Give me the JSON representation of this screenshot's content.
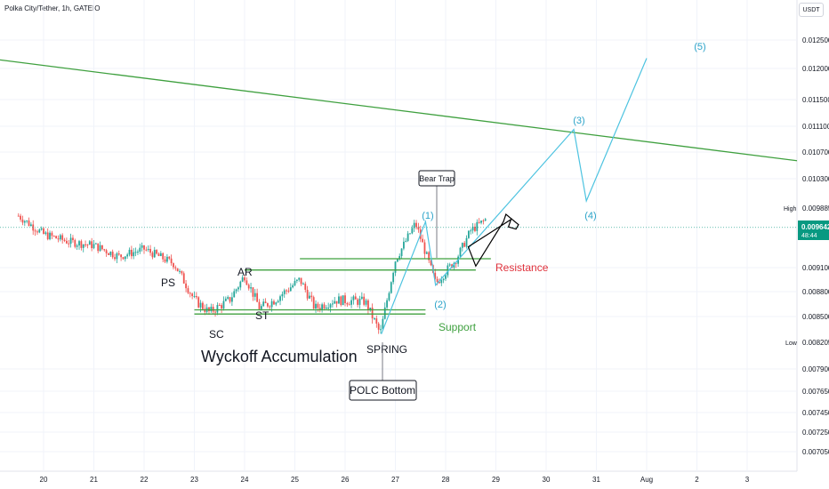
{
  "header": {
    "title": "Polka City/Tether, 1h, GATEIO",
    "currency": "USDT"
  },
  "colors": {
    "up": "#26a69a",
    "down": "#ef5350",
    "trendline": "#3fa03f",
    "wave": "#4dc3e0",
    "wave_label": "#2ba3c9",
    "resistance_label": "#e0323c",
    "support_label": "#3fa03f",
    "current_price_bg": "#089981",
    "annotation_text": "#131722"
  },
  "price_axis": {
    "ticks": [
      "0.012500",
      "0.012000",
      "0.011500",
      "0.011100",
      "0.010700",
      "0.010300",
      "0.009100",
      "0.008800",
      "0.008500",
      "0.007900",
      "0.007650",
      "0.007450",
      "0.007250",
      "0.007050"
    ],
    "high_label": "High",
    "high_value": "0.009885",
    "low_label": "Low",
    "low_value": "0.008205",
    "current_value": "0.009642",
    "countdown": "48:44"
  },
  "time_axis": {
    "ticks": [
      "20",
      "21",
      "22",
      "23",
      "24",
      "25",
      "26",
      "27",
      "28",
      "29",
      "30",
      "31",
      "Aug",
      "2",
      "3"
    ]
  },
  "annotations": {
    "ps": "PS",
    "sc": "SC",
    "ar": "AR",
    "st": "ST",
    "spring": "SPRING",
    "title": "Wyckoff Accumulation",
    "polc": "POLC Bottom",
    "bear_trap": "Bear Trap",
    "support": "Support",
    "resistance": "Resistance",
    "wave1": "(1)",
    "wave2": "(2)",
    "wave3": "(3)",
    "wave4": "(4)",
    "wave5": "(5)"
  },
  "chart_data": {
    "type": "candlestick",
    "symbol": "Polka City/Tether",
    "interval": "1h",
    "exchange": "GATEIO",
    "quote_currency": "USDT",
    "y_ticks": [
      0.0125,
      0.012,
      0.0115,
      0.0111,
      0.0107,
      0.0103,
      0.0091,
      0.0088,
      0.0085,
      0.0079,
      0.00765,
      0.00745,
      0.00725,
      0.00705
    ],
    "x_ticks": [
      "20",
      "21",
      "22",
      "23",
      "24",
      "25",
      "26",
      "27",
      "28",
      "29",
      "30",
      "31",
      "Aug",
      "2",
      "3"
    ],
    "high": 0.009885,
    "low": 0.008205,
    "last_price": 0.009642,
    "close_path": [
      {
        "day": 19.5,
        "close": 0.0098
      },
      {
        "day": 20.0,
        "close": 0.00955
      },
      {
        "day": 20.5,
        "close": 0.00945
      },
      {
        "day": 21.0,
        "close": 0.0094
      },
      {
        "day": 21.5,
        "close": 0.00925
      },
      {
        "day": 22.0,
        "close": 0.00935
      },
      {
        "day": 22.6,
        "close": 0.00915
      },
      {
        "day": 23.0,
        "close": 0.0087
      },
      {
        "day": 23.3,
        "close": 0.00855
      },
      {
        "day": 23.7,
        "close": 0.0087
      },
      {
        "day": 24.0,
        "close": 0.009
      },
      {
        "day": 24.3,
        "close": 0.0086
      },
      {
        "day": 24.6,
        "close": 0.0087
      },
      {
        "day": 25.1,
        "close": 0.00895
      },
      {
        "day": 25.4,
        "close": 0.0086
      },
      {
        "day": 25.8,
        "close": 0.0087
      },
      {
        "day": 26.4,
        "close": 0.00868
      },
      {
        "day": 26.7,
        "close": 0.0083
      },
      {
        "day": 27.0,
        "close": 0.0092
      },
      {
        "day": 27.4,
        "close": 0.0097
      },
      {
        "day": 27.8,
        "close": 0.0089
      },
      {
        "day": 28.2,
        "close": 0.0092
      },
      {
        "day": 28.5,
        "close": 0.0096
      },
      {
        "day": 28.8,
        "close": 0.00975
      }
    ],
    "trendline": [
      {
        "day": 19.0,
        "price": 0.01215
      },
      {
        "day": 4.0,
        "offset_days": 15,
        "price": 0.01057
      }
    ],
    "resistance_lines": [
      {
        "from": 24.0,
        "to": 28.6,
        "price": 0.00907
      },
      {
        "from": 25.1,
        "to": 28.9,
        "price": 0.00922
      }
    ],
    "support_lines": [
      {
        "from": 23.0,
        "to": 27.6,
        "price": 0.00858
      },
      {
        "from": 23.0,
        "to": 27.6,
        "price": 0.00853
      }
    ],
    "wave_projection": [
      {
        "label": "(1)",
        "day": 27.6,
        "price": 0.00972
      },
      {
        "label": "(2)",
        "day": 27.8,
        "price": 0.00888
      },
      {
        "label": "(3)",
        "day": 30.55,
        "price": 0.01105
      },
      {
        "label": "(4)",
        "day": 30.8,
        "price": 0.01
      },
      {
        "label": "(5)",
        "day": 32.0,
        "price": 0.01218
      }
    ]
  }
}
